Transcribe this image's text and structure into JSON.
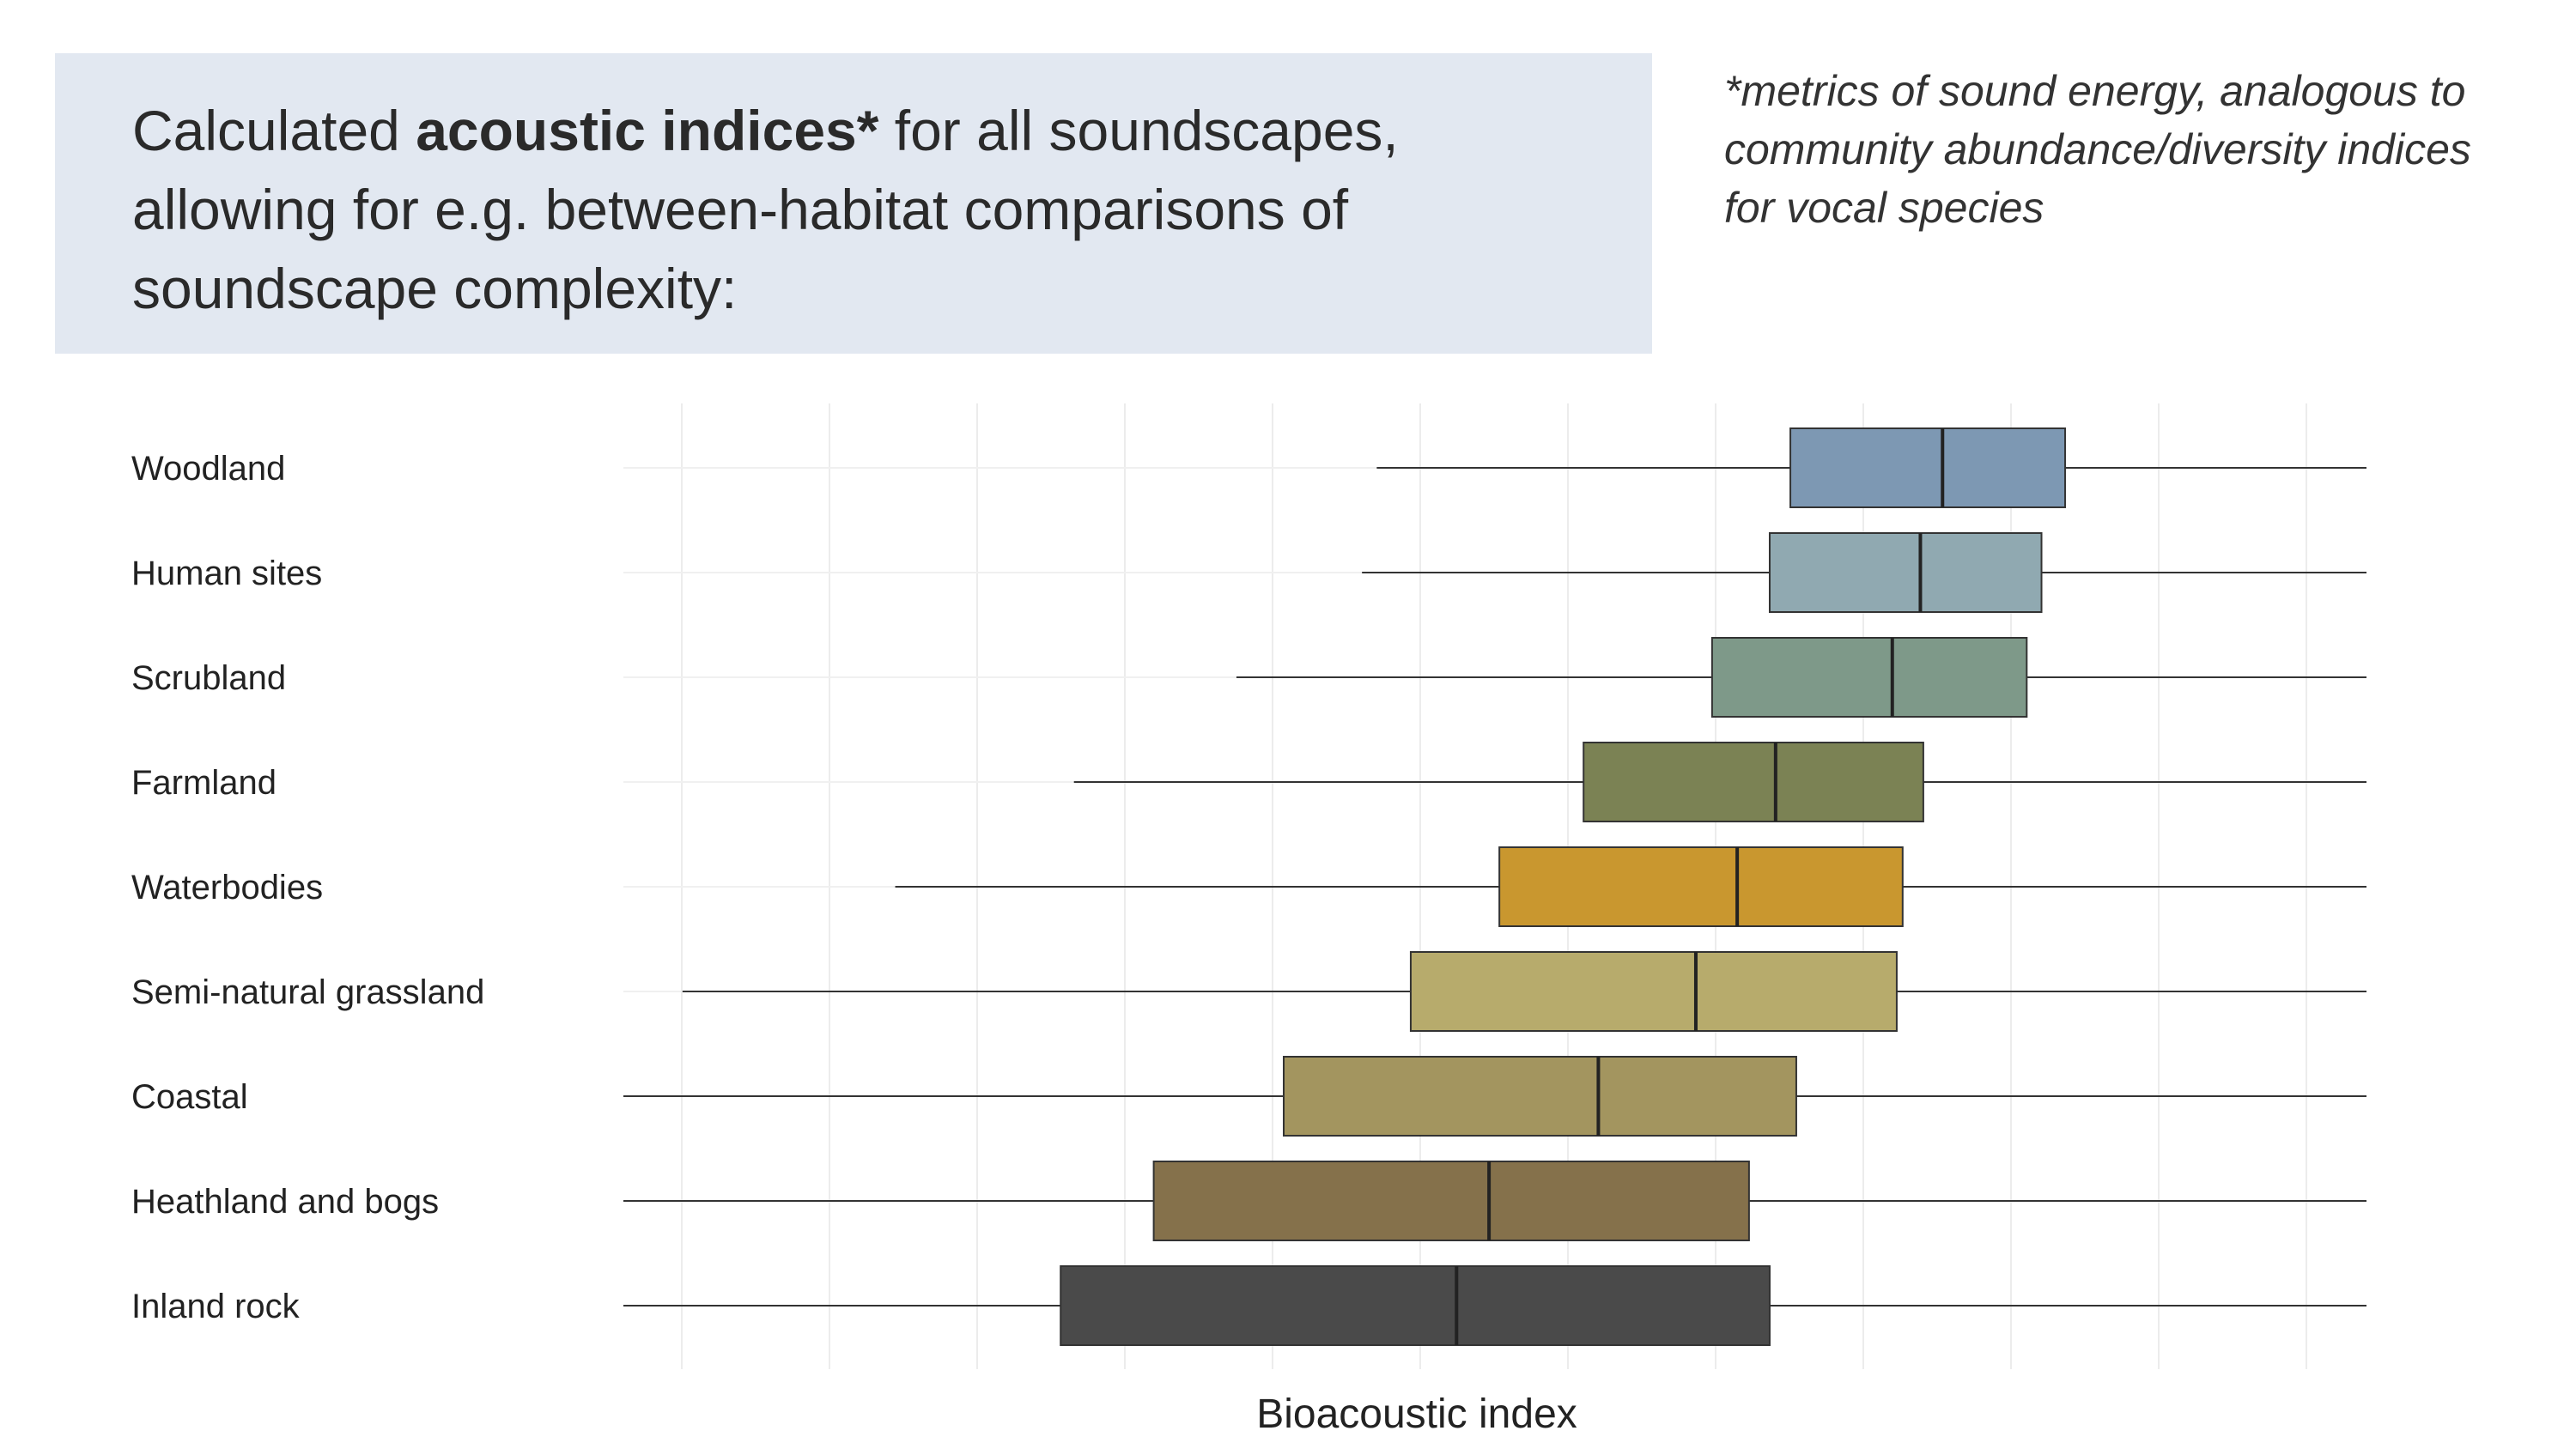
{
  "title": {
    "part1": "Calculated ",
    "bold": "acoustic indices*",
    "part2": " for all soundscapes, allowing for e.g. between-habitat comparisons of soundscape complexity:"
  },
  "footnote": "*metrics of sound energy, analogous to community abundance/diversity indices for vocal species",
  "chart_data": {
    "type": "boxplot",
    "orientation": "horizontal",
    "xlabel": "Bioacoustic index",
    "ylabel": "",
    "xlim": [
      0,
      11.8
    ],
    "grid": true,
    "tick_labels_shown": false,
    "categories": [
      "Woodland",
      "Human sites",
      "Scrubland",
      "Farmland",
      "Waterbodies",
      "Semi-natural grassland",
      "Coastal",
      "Heathland and bogs",
      "Inland rock"
    ],
    "colors": [
      "#7d98b3",
      "#90a9b1",
      "#7e9989",
      "#7b8254",
      "#c9972f",
      "#b7ab6c",
      "#a3955f",
      "#85714b",
      "#4a4a4a"
    ],
    "boxes": [
      {
        "whisker_low": 5.1,
        "q1": 7.9,
        "median": 8.93,
        "q3": 9.76,
        "whisker_high": 11.8
      },
      {
        "whisker_low": 5.0,
        "q1": 7.76,
        "median": 8.78,
        "q3": 9.6,
        "whisker_high": 11.8
      },
      {
        "whisker_low": 4.15,
        "q1": 7.37,
        "median": 8.59,
        "q3": 9.5,
        "whisker_high": 11.8
      },
      {
        "whisker_low": 3.05,
        "q1": 6.5,
        "median": 7.8,
        "q3": 8.8,
        "whisker_high": 11.8
      },
      {
        "whisker_low": 1.84,
        "q1": 5.93,
        "median": 7.54,
        "q3": 8.66,
        "whisker_high": 11.8
      },
      {
        "whisker_low": 0.4,
        "q1": 5.33,
        "median": 7.26,
        "q3": 8.62,
        "whisker_high": 11.8
      },
      {
        "whisker_low": 0.0,
        "q1": 4.47,
        "median": 6.6,
        "q3": 7.94,
        "whisker_high": 11.8
      },
      {
        "whisker_low": 0.0,
        "q1": 3.59,
        "median": 5.86,
        "q3": 7.62,
        "whisker_high": 11.8
      },
      {
        "whisker_low": 0.0,
        "q1": 2.96,
        "median": 5.64,
        "q3": 7.76,
        "whisker_high": 11.8
      }
    ]
  }
}
